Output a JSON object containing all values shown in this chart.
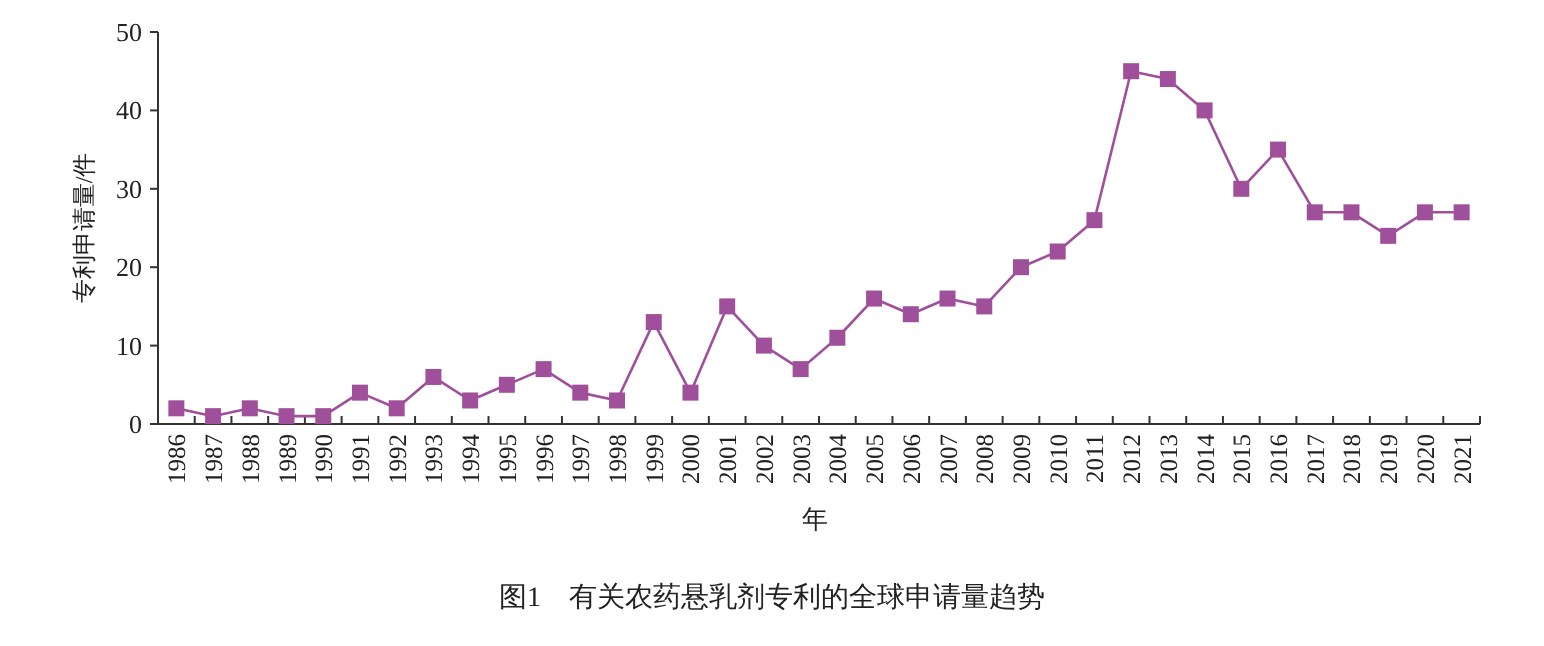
{
  "chart_data": {
    "type": "line",
    "title": "图1　有关农药悬乳剂专利的全球申请量趋势",
    "xlabel": "年",
    "ylabel": "专利申请量/件",
    "categories": [
      "1986",
      "1987",
      "1988",
      "1989",
      "1990",
      "1991",
      "1992",
      "1993",
      "1994",
      "1995",
      "1996",
      "1997",
      "1998",
      "1999",
      "2000",
      "2001",
      "2002",
      "2003",
      "2004",
      "2005",
      "2006",
      "2007",
      "2008",
      "2009",
      "2010",
      "2011",
      "2012",
      "2013",
      "2014",
      "2015",
      "2016",
      "2017",
      "2018",
      "2019",
      "2020",
      "2021"
    ],
    "values": [
      2,
      1,
      2,
      1,
      1,
      4,
      2,
      6,
      3,
      5,
      7,
      4,
      3,
      13,
      4,
      15,
      10,
      7,
      11,
      16,
      14,
      16,
      15,
      20,
      22,
      26,
      45,
      44,
      40,
      30,
      35,
      27,
      27,
      24,
      27,
      27
    ],
    "color": "#a0509a",
    "ylim": [
      0,
      50
    ],
    "yticks": [
      0,
      10,
      20,
      30,
      40,
      50
    ],
    "marker": "square",
    "line_style": "solid"
  }
}
